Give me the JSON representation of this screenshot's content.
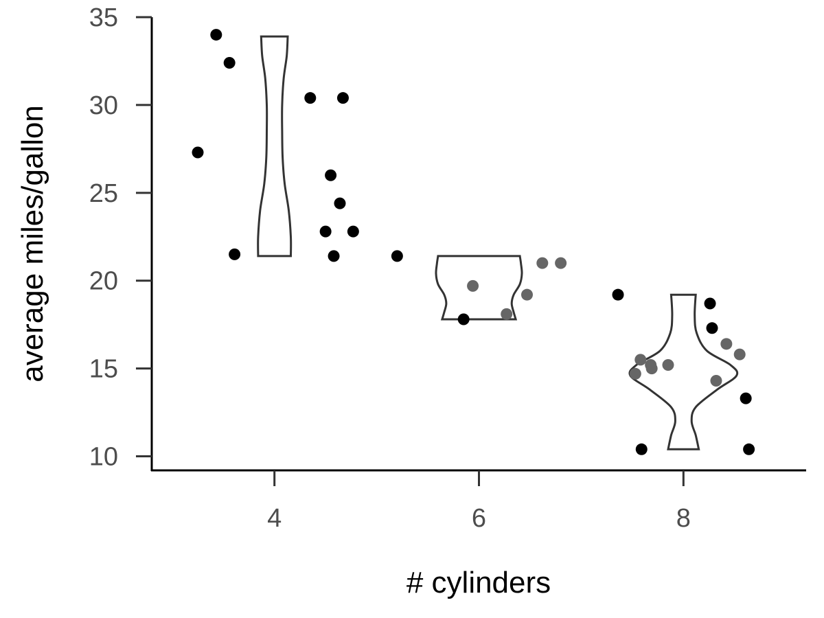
{
  "chart_data": {
    "type": "violin",
    "xlabel": "# cylinders",
    "ylabel": "average miles/gallon",
    "x_ticks": [
      "4",
      "6",
      "8"
    ],
    "y_ticks": [
      10,
      15,
      20,
      25,
      30,
      35
    ],
    "xlim": [
      2.8,
      9.2
    ],
    "ylim": [
      9.2,
      35
    ],
    "colors": {
      "point_dark": "#000000",
      "point_gray": "#666666",
      "violin_stroke": "#333333"
    },
    "violins": [
      {
        "group": "4",
        "x": 4,
        "profile": [
          [
            21.4,
            0.16
          ],
          [
            22.5,
            0.16
          ],
          [
            24,
            0.14
          ],
          [
            25.5,
            0.1
          ],
          [
            27,
            0.08
          ],
          [
            28.5,
            0.075
          ],
          [
            30,
            0.075
          ],
          [
            31.5,
            0.09
          ],
          [
            32.8,
            0.12
          ],
          [
            33.9,
            0.13
          ]
        ]
      },
      {
        "group": "6",
        "x": 6,
        "profile": [
          [
            17.8,
            0.36
          ],
          [
            18.2,
            0.34
          ],
          [
            18.7,
            0.32
          ],
          [
            19.2,
            0.34
          ],
          [
            19.8,
            0.4
          ],
          [
            20.4,
            0.42
          ],
          [
            21,
            0.41
          ],
          [
            21.4,
            0.4
          ]
        ]
      },
      {
        "group": "8",
        "x": 8,
        "profile": [
          [
            10.4,
            0.15
          ],
          [
            11.2,
            0.12
          ],
          [
            12,
            0.08
          ],
          [
            12.8,
            0.12
          ],
          [
            13.8,
            0.33
          ],
          [
            14.6,
            0.52
          ],
          [
            15.2,
            0.46
          ],
          [
            16,
            0.23
          ],
          [
            17,
            0.13
          ],
          [
            18,
            0.11
          ],
          [
            19.2,
            0.12
          ]
        ]
      }
    ],
    "points": [
      {
        "x": 3.43,
        "y": 34.0,
        "shade": "dark"
      },
      {
        "x": 3.56,
        "y": 32.4,
        "shade": "dark"
      },
      {
        "x": 4.35,
        "y": 30.4,
        "shade": "dark"
      },
      {
        "x": 4.67,
        "y": 30.4,
        "shade": "dark"
      },
      {
        "x": 3.25,
        "y": 27.3,
        "shade": "dark"
      },
      {
        "x": 4.55,
        "y": 26.0,
        "shade": "dark"
      },
      {
        "x": 4.64,
        "y": 24.4,
        "shade": "dark"
      },
      {
        "x": 4.5,
        "y": 22.8,
        "shade": "dark"
      },
      {
        "x": 4.77,
        "y": 22.8,
        "shade": "dark"
      },
      {
        "x": 3.61,
        "y": 21.5,
        "shade": "dark"
      },
      {
        "x": 4.58,
        "y": 21.4,
        "shade": "dark"
      },
      {
        "x": 5.2,
        "y": 21.4,
        "shade": "dark"
      },
      {
        "x": 6.62,
        "y": 21.0,
        "shade": "gray"
      },
      {
        "x": 6.8,
        "y": 21.0,
        "shade": "gray"
      },
      {
        "x": 5.94,
        "y": 19.7,
        "shade": "gray"
      },
      {
        "x": 6.47,
        "y": 19.2,
        "shade": "gray"
      },
      {
        "x": 6.27,
        "y": 18.1,
        "shade": "gray"
      },
      {
        "x": 5.85,
        "y": 17.8,
        "shade": "dark"
      },
      {
        "x": 7.36,
        "y": 19.2,
        "shade": "dark"
      },
      {
        "x": 8.26,
        "y": 18.7,
        "shade": "dark"
      },
      {
        "x": 8.28,
        "y": 17.3,
        "shade": "dark"
      },
      {
        "x": 8.42,
        "y": 16.4,
        "shade": "gray"
      },
      {
        "x": 8.55,
        "y": 15.8,
        "shade": "gray"
      },
      {
        "x": 7.58,
        "y": 15.5,
        "shade": "gray"
      },
      {
        "x": 7.68,
        "y": 15.2,
        "shade": "gray"
      },
      {
        "x": 7.85,
        "y": 15.2,
        "shade": "gray"
      },
      {
        "x": 7.69,
        "y": 15.0,
        "shade": "gray"
      },
      {
        "x": 7.53,
        "y": 14.7,
        "shade": "gray"
      },
      {
        "x": 8.32,
        "y": 14.3,
        "shade": "gray"
      },
      {
        "x": 8.61,
        "y": 13.3,
        "shade": "dark"
      },
      {
        "x": 7.59,
        "y": 10.4,
        "shade": "dark"
      },
      {
        "x": 8.64,
        "y": 10.4,
        "shade": "dark"
      }
    ]
  }
}
